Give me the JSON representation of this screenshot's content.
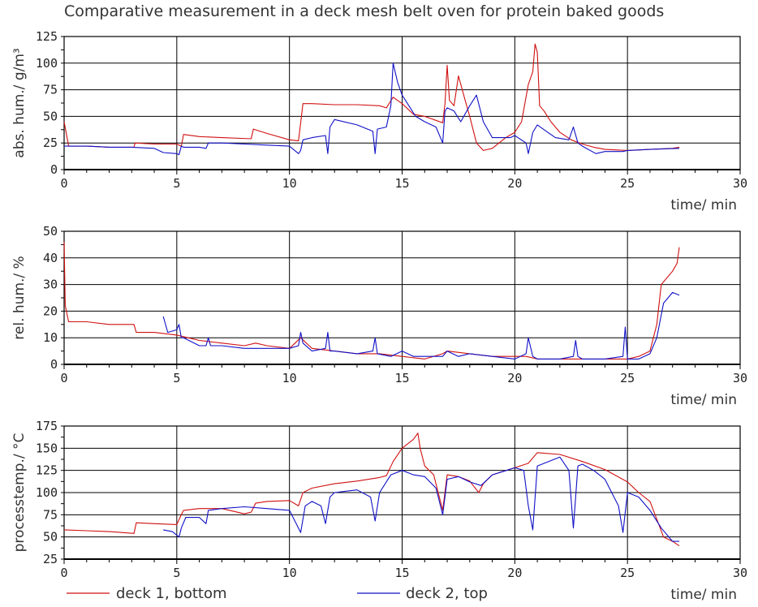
{
  "title": "Comparative measurement in a deck mesh belt oven for protein baked goods",
  "legend": [
    {
      "label": "deck 1, bottom",
      "color": "#d01010"
    },
    {
      "label": "deck 2, top",
      "color": "#1010c8"
    }
  ],
  "chart_data": [
    {
      "type": "line",
      "ylabel": "abs. hum./ g/m³",
      "xlabel": "time/ min",
      "xlim": [
        0,
        30
      ],
      "ylim": [
        0,
        125
      ],
      "xticks": [
        0,
        5,
        10,
        15,
        20,
        25,
        30
      ],
      "yticks": [
        0,
        25,
        50,
        75,
        100,
        125
      ],
      "grid": true,
      "series": [
        {
          "name": "deck 1, bottom",
          "color": "#d01010",
          "x": [
            0,
            0.2,
            1,
            2,
            3.1,
            3.15,
            4,
            5,
            5.2,
            5.3,
            6,
            7,
            8.3,
            8.4,
            9,
            10,
            10.4,
            10.6,
            11,
            12,
            13,
            14,
            14.3,
            14.6,
            15,
            15.5,
            16,
            16.8,
            16.9,
            17,
            17.1,
            17.3,
            17.5,
            17.8,
            18,
            18.3,
            18.6,
            19,
            19.3,
            19.6,
            20,
            20.3,
            20.6,
            20.8,
            20.9,
            21,
            21.1,
            21.3,
            21.6,
            22,
            22.5,
            23,
            23.5,
            24,
            25,
            26,
            27,
            27.3
          ],
          "y": [
            45,
            22,
            22,
            21,
            21,
            25,
            24,
            24,
            22,
            33,
            31,
            30,
            29,
            38,
            34,
            28,
            27,
            62,
            62,
            61,
            61,
            60,
            58,
            68,
            62,
            52,
            50,
            44,
            62,
            98,
            65,
            60,
            88,
            65,
            50,
            25,
            18,
            20,
            25,
            30,
            35,
            45,
            80,
            92,
            118,
            110,
            60,
            55,
            45,
            35,
            28,
            24,
            21,
            19,
            18,
            19,
            20,
            21
          ]
        },
        {
          "name": "deck 2, top",
          "color": "#1010c8",
          "x": [
            0,
            1,
            2,
            3,
            4,
            4.4,
            5,
            5.1,
            5.2,
            5.3,
            6,
            6.3,
            6.4,
            7,
            8,
            9,
            10,
            10.4,
            10.5,
            10.6,
            11,
            11.6,
            11.7,
            11.8,
            12,
            13,
            13.7,
            13.8,
            13.9,
            14.3,
            14.5,
            14.6,
            14.8,
            15,
            15.3,
            15.6,
            16,
            16.5,
            16.8,
            16.9,
            17,
            17.3,
            17.6,
            18,
            18.3,
            18.6,
            19,
            19.5,
            19.8,
            20,
            20.5,
            20.6,
            20.8,
            21,
            21.4,
            21.8,
            22.4,
            22.6,
            22.8,
            23,
            23.6,
            24,
            24.8,
            25,
            26,
            27.3
          ],
          "y": [
            22,
            22,
            21,
            21,
            20,
            16,
            15,
            14,
            22,
            21,
            21,
            20,
            25,
            25,
            24,
            23,
            22,
            15,
            18,
            28,
            30,
            32,
            15,
            40,
            47,
            42,
            36,
            15,
            38,
            40,
            60,
            100,
            82,
            70,
            60,
            50,
            45,
            40,
            25,
            55,
            58,
            55,
            45,
            60,
            70,
            45,
            30,
            30,
            30,
            32,
            25,
            15,
            35,
            42,
            36,
            30,
            28,
            40,
            25,
            22,
            15,
            17,
            17,
            18,
            19,
            20
          ]
        }
      ]
    },
    {
      "type": "line",
      "ylabel": "rel. hum./ %",
      "xlabel": "time/ min",
      "xlim": [
        0,
        30
      ],
      "ylim": [
        0,
        50
      ],
      "xticks": [
        0,
        5,
        10,
        15,
        20,
        25,
        30
      ],
      "yticks": [
        0,
        10,
        20,
        30,
        40,
        50
      ],
      "grid": true,
      "series": [
        {
          "name": "deck 1, bottom",
          "color": "#d01010",
          "x": [
            0,
            0.05,
            0.2,
            1,
            2,
            3.1,
            3.2,
            4,
            5,
            5.5,
            6,
            7,
            8,
            8.5,
            9,
            10,
            10.5,
            11,
            12,
            13,
            14,
            15,
            16,
            16.8,
            17,
            18,
            19,
            20,
            20.5,
            21,
            22,
            23,
            24,
            25,
            25.5,
            26,
            26.3,
            26.5,
            27,
            27.2,
            27.3
          ],
          "y": [
            46,
            22,
            16,
            16,
            15,
            15,
            12,
            12,
            11,
            10,
            9,
            8,
            7,
            8,
            7,
            6,
            10,
            6,
            5,
            4,
            4,
            3,
            2,
            4,
            5,
            4,
            3,
            3,
            3,
            2,
            2,
            2,
            2,
            2,
            3,
            5,
            15,
            30,
            35,
            38,
            44
          ]
        },
        {
          "name": "deck 2, top",
          "color": "#1010c8",
          "x": [
            4.4,
            4.6,
            5,
            5.1,
            5.2,
            5.3,
            6,
            6.3,
            6.4,
            6.5,
            7,
            8,
            9,
            10,
            10.4,
            10.5,
            10.6,
            11,
            11.6,
            11.7,
            11.8,
            12,
            13,
            13.7,
            13.8,
            13.9,
            14.5,
            15,
            15.5,
            16,
            16.8,
            17,
            17.5,
            18,
            19,
            20,
            20.5,
            20.6,
            20.8,
            21,
            22,
            22.6,
            22.7,
            22.8,
            23,
            24,
            24.8,
            24.9,
            25,
            25.5,
            26,
            26.3,
            26.6,
            27,
            27.3
          ],
          "y": [
            18,
            12,
            13,
            15,
            10,
            10,
            7,
            7,
            10,
            7,
            7,
            6,
            6,
            6,
            7,
            12,
            8,
            5,
            6,
            12,
            5,
            5,
            4,
            5,
            10,
            4,
            3,
            5,
            3,
            3,
            3,
            5,
            3,
            4,
            3,
            2,
            4,
            10,
            3,
            2,
            2,
            3,
            9,
            3,
            2,
            2,
            3,
            14,
            2,
            2,
            4,
            10,
            23,
            27,
            26
          ]
        }
      ]
    },
    {
      "type": "line",
      "ylabel": "processtemp./ °C",
      "xlabel": "time/ min",
      "xlim": [
        0,
        30
      ],
      "ylim": [
        25,
        175
      ],
      "xticks": [
        0,
        5,
        10,
        15,
        20,
        25,
        30
      ],
      "yticks": [
        25,
        50,
        75,
        100,
        125,
        150,
        175
      ],
      "grid": true,
      "series": [
        {
          "name": "deck 1, bottom",
          "color": "#d01010",
          "x": [
            0,
            1,
            2,
            3.1,
            3.2,
            4,
            5,
            5.2,
            5.3,
            6,
            7,
            8,
            8.3,
            8.5,
            9,
            10,
            10.4,
            10.6,
            11,
            12,
            13,
            14,
            14.3,
            14.6,
            15,
            15.5,
            15.7,
            15.8,
            16,
            16.4,
            16.8,
            17,
            17.5,
            18,
            18.4,
            18.6,
            19,
            20,
            20.6,
            21,
            22,
            23,
            24,
            25,
            25.5,
            26,
            26.3,
            26.6,
            27,
            27.3
          ],
          "y": [
            58,
            57,
            56,
            54,
            66,
            65,
            64,
            75,
            80,
            82,
            82,
            76,
            78,
            88,
            90,
            91,
            85,
            100,
            105,
            110,
            113,
            117,
            119,
            135,
            150,
            160,
            167,
            150,
            130,
            120,
            80,
            120,
            118,
            113,
            100,
            110,
            120,
            128,
            133,
            145,
            143,
            135,
            126,
            112,
            100,
            90,
            70,
            50,
            45,
            40
          ]
        },
        {
          "name": "deck 2, top",
          "color": "#1010c8",
          "x": [
            4.4,
            4.8,
            5.1,
            5.2,
            5.4,
            6,
            6.3,
            6.4,
            7,
            8,
            9,
            10,
            10.3,
            10.5,
            10.7,
            11,
            11.4,
            11.6,
            11.8,
            12,
            13,
            13.6,
            13.8,
            14,
            14.5,
            15,
            15.5,
            16,
            16.5,
            16.8,
            17,
            17.5,
            18,
            18.5,
            19,
            19.5,
            20,
            20.4,
            20.6,
            20.8,
            21,
            22,
            22.4,
            22.6,
            22.8,
            23,
            23.5,
            24,
            24.6,
            24.8,
            25,
            25.5,
            26,
            26.5,
            27,
            27.3
          ],
          "y": [
            58,
            56,
            50,
            60,
            72,
            72,
            65,
            80,
            82,
            84,
            82,
            80,
            65,
            55,
            85,
            90,
            85,
            65,
            95,
            100,
            103,
            95,
            68,
            100,
            120,
            125,
            120,
            118,
            105,
            75,
            115,
            118,
            112,
            108,
            120,
            124,
            128,
            125,
            85,
            58,
            130,
            140,
            125,
            60,
            130,
            132,
            125,
            115,
            85,
            55,
            100,
            95,
            80,
            60,
            45,
            45
          ]
        }
      ]
    }
  ]
}
